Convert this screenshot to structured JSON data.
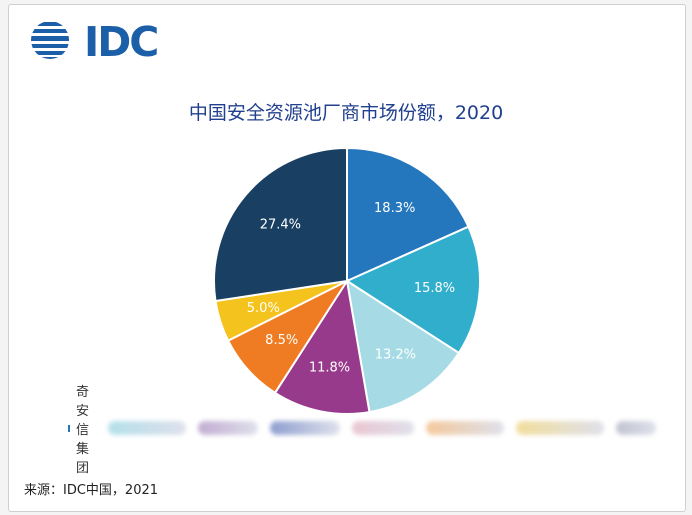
{
  "logo": {
    "text": "IDC",
    "icon": "idc-globe-icon",
    "color": "#1a5fa8"
  },
  "chart_data": {
    "type": "pie",
    "title": "中国安全资源池厂商市场份额，2020",
    "start_angle_deg": 0,
    "direction": "clockwise",
    "slices": [
      {
        "label": "",
        "value": 18.3,
        "display": "18.3%",
        "color": "#2476bd"
      },
      {
        "label": "",
        "value": 15.8,
        "display": "15.8%",
        "color": "#31aecb"
      },
      {
        "label": "",
        "value": 13.2,
        "display": "13.2%",
        "color": "#a6dbe6"
      },
      {
        "label": "",
        "value": 11.8,
        "display": "11.8%",
        "color": "#983a8b"
      },
      {
        "label": "",
        "value": 8.5,
        "display": "8.5%",
        "color": "#ef7c22"
      },
      {
        "label": "",
        "value": 5.0,
        "display": "5.0%",
        "color": "#f4c31d"
      },
      {
        "label": "",
        "value": 27.4,
        "display": "27.4%",
        "color": "#193f63"
      }
    ],
    "legend": {
      "placement": "bottom",
      "visible_label": "奇安信集团",
      "visible_color": "#2476bd",
      "obscured_colors": [
        "#a6dbe6",
        "#b89fca",
        "#7a8ec7",
        "#e7bcc8",
        "#f2c08a",
        "#f0d88a",
        "#b7b9c9"
      ]
    }
  },
  "source": "来源：IDC中国，2021"
}
